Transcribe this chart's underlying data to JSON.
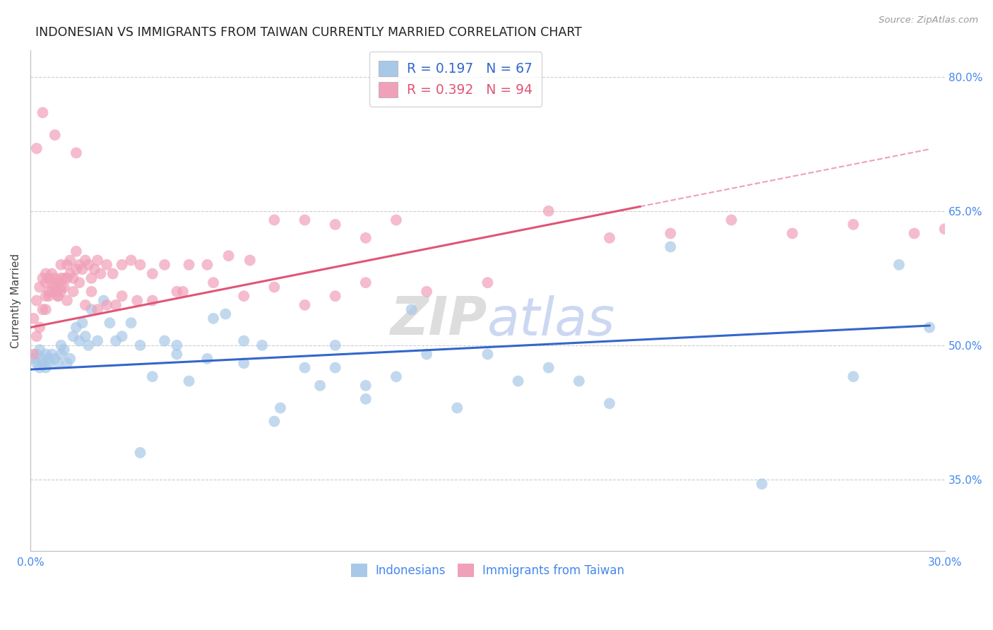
{
  "title": "INDONESIAN VS IMMIGRANTS FROM TAIWAN CURRENTLY MARRIED CORRELATION CHART",
  "source": "Source: ZipAtlas.com",
  "ylabel": "Currently Married",
  "xlim": [
    0.0,
    0.3
  ],
  "ylim": [
    0.27,
    0.83
  ],
  "yticks": [
    0.35,
    0.5,
    0.65,
    0.8
  ],
  "ytick_labels": [
    "35.0%",
    "50.0%",
    "65.0%",
    "80.0%"
  ],
  "blue_R": 0.197,
  "blue_N": 67,
  "pink_R": 0.392,
  "pink_N": 94,
  "blue_dot_color": "#a8c8e8",
  "pink_dot_color": "#f0a0b8",
  "blue_line_color": "#3366cc",
  "pink_line_color": "#e05575",
  "blue_label": "Indonesians",
  "pink_label": "Immigrants from Taiwan",
  "background_color": "#ffffff",
  "grid_color": "#cccccc",
  "axis_text_color": "#4488ee",
  "title_color": "#222222",
  "watermark_color": "#dedede",
  "legend_text_blue": "#3366cc",
  "legend_text_pink": "#e05575",
  "blue_x": [
    0.001,
    0.002,
    0.002,
    0.003,
    0.003,
    0.004,
    0.004,
    0.005,
    0.005,
    0.006,
    0.006,
    0.007,
    0.008,
    0.009,
    0.01,
    0.01,
    0.011,
    0.012,
    0.013,
    0.014,
    0.015,
    0.016,
    0.017,
    0.018,
    0.019,
    0.02,
    0.022,
    0.024,
    0.026,
    0.028,
    0.03,
    0.033,
    0.036,
    0.04,
    0.044,
    0.048,
    0.052,
    0.058,
    0.064,
    0.07,
    0.076,
    0.082,
    0.09,
    0.1,
    0.11,
    0.12,
    0.13,
    0.14,
    0.1,
    0.11,
    0.06,
    0.07,
    0.08,
    0.048,
    0.036,
    0.16,
    0.17,
    0.19,
    0.21,
    0.24,
    0.27,
    0.285,
    0.295,
    0.15,
    0.18,
    0.125,
    0.095
  ],
  "blue_y": [
    0.485,
    0.49,
    0.48,
    0.475,
    0.495,
    0.485,
    0.48,
    0.49,
    0.475,
    0.485,
    0.48,
    0.49,
    0.485,
    0.48,
    0.49,
    0.5,
    0.495,
    0.48,
    0.485,
    0.51,
    0.52,
    0.505,
    0.525,
    0.51,
    0.5,
    0.54,
    0.505,
    0.55,
    0.525,
    0.505,
    0.51,
    0.525,
    0.5,
    0.465,
    0.505,
    0.5,
    0.46,
    0.485,
    0.535,
    0.48,
    0.5,
    0.43,
    0.475,
    0.5,
    0.44,
    0.465,
    0.49,
    0.43,
    0.475,
    0.455,
    0.53,
    0.505,
    0.415,
    0.49,
    0.38,
    0.46,
    0.475,
    0.435,
    0.61,
    0.345,
    0.465,
    0.59,
    0.52,
    0.49,
    0.46,
    0.54,
    0.455
  ],
  "pink_x": [
    0.001,
    0.001,
    0.002,
    0.002,
    0.003,
    0.003,
    0.004,
    0.004,
    0.005,
    0.005,
    0.005,
    0.006,
    0.006,
    0.007,
    0.007,
    0.008,
    0.008,
    0.009,
    0.009,
    0.01,
    0.01,
    0.01,
    0.011,
    0.011,
    0.012,
    0.012,
    0.013,
    0.013,
    0.014,
    0.015,
    0.015,
    0.016,
    0.017,
    0.018,
    0.019,
    0.02,
    0.021,
    0.022,
    0.023,
    0.025,
    0.027,
    0.03,
    0.033,
    0.036,
    0.04,
    0.044,
    0.048,
    0.052,
    0.058,
    0.065,
    0.072,
    0.08,
    0.09,
    0.1,
    0.11,
    0.12,
    0.005,
    0.006,
    0.007,
    0.008,
    0.009,
    0.01,
    0.012,
    0.014,
    0.016,
    0.018,
    0.02,
    0.025,
    0.03,
    0.04,
    0.05,
    0.06,
    0.07,
    0.08,
    0.09,
    0.1,
    0.11,
    0.13,
    0.15,
    0.17,
    0.19,
    0.21,
    0.23,
    0.25,
    0.27,
    0.29,
    0.3,
    0.035,
    0.028,
    0.022,
    0.015,
    0.008,
    0.004,
    0.002
  ],
  "pink_y": [
    0.49,
    0.53,
    0.51,
    0.55,
    0.52,
    0.565,
    0.54,
    0.575,
    0.555,
    0.58,
    0.57,
    0.575,
    0.56,
    0.57,
    0.58,
    0.565,
    0.575,
    0.57,
    0.555,
    0.575,
    0.56,
    0.59,
    0.565,
    0.575,
    0.575,
    0.59,
    0.58,
    0.595,
    0.575,
    0.585,
    0.605,
    0.59,
    0.585,
    0.595,
    0.59,
    0.575,
    0.585,
    0.595,
    0.58,
    0.59,
    0.58,
    0.59,
    0.595,
    0.59,
    0.58,
    0.59,
    0.56,
    0.59,
    0.59,
    0.6,
    0.595,
    0.64,
    0.64,
    0.635,
    0.62,
    0.64,
    0.54,
    0.555,
    0.56,
    0.56,
    0.555,
    0.565,
    0.55,
    0.56,
    0.57,
    0.545,
    0.56,
    0.545,
    0.555,
    0.55,
    0.56,
    0.57,
    0.555,
    0.565,
    0.545,
    0.555,
    0.57,
    0.56,
    0.57,
    0.65,
    0.62,
    0.625,
    0.64,
    0.625,
    0.635,
    0.625,
    0.63,
    0.55,
    0.545,
    0.54,
    0.715,
    0.735,
    0.76,
    0.72
  ]
}
